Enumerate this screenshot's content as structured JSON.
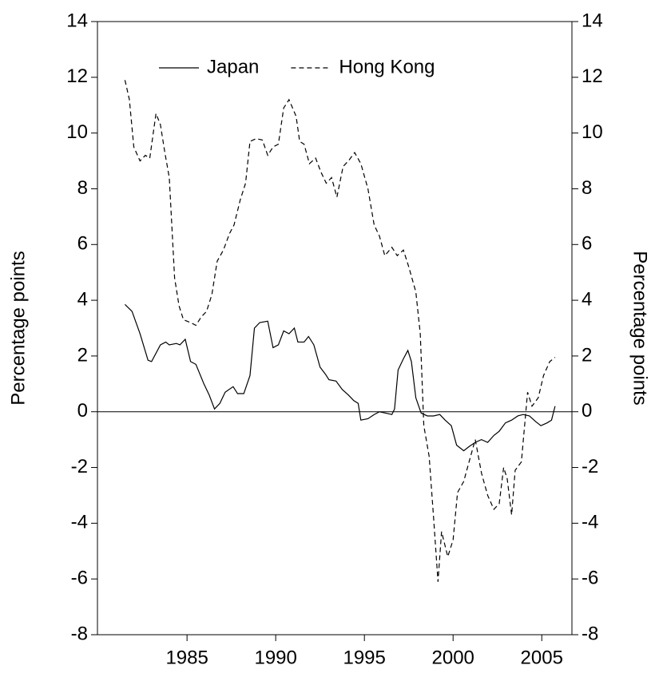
{
  "chart_data": {
    "type": "line",
    "ylabel": "Percentage points",
    "y2label": "Percentage points",
    "legend": "upper center",
    "zero_line": true,
    "xlim": [
      1979.95,
      2006.7
    ],
    "xticks": [
      1985,
      1990,
      1995,
      2000,
      2005
    ],
    "ylim": [
      -8,
      14
    ],
    "yticks": [
      -8,
      -6,
      -4,
      -2,
      0,
      2,
      4,
      6,
      8,
      10,
      12,
      14
    ],
    "y2lim": [
      -8,
      14
    ],
    "y2ticks": [
      -8,
      -6,
      -4,
      -2,
      0,
      2,
      4,
      6,
      8,
      10,
      12,
      14
    ],
    "series": [
      {
        "name": "Japan",
        "color": "#000000",
        "line_style": "solid",
        "x": [
          1981.5,
          1981.9,
          1982.35,
          1982.8,
          1983.0,
          1983.5,
          1983.8,
          1984.0,
          1984.4,
          1984.6,
          1984.9,
          1985.2,
          1985.5,
          1985.95,
          1986.25,
          1986.55,
          1986.85,
          1987.15,
          1987.6,
          1987.85,
          1988.2,
          1988.55,
          1988.8,
          1989.1,
          1989.55,
          1989.85,
          1990.15,
          1990.45,
          1990.75,
          1991.05,
          1991.25,
          1991.6,
          1991.85,
          1992.15,
          1992.5,
          1992.8,
          1993.0,
          1993.4,
          1993.75,
          1994.1,
          1994.4,
          1994.65,
          1994.8,
          1995.2,
          1995.55,
          1995.85,
          1996.2,
          1996.55,
          1996.7,
          1996.9,
          1997.2,
          1997.45,
          1997.65,
          1997.9,
          1998.2,
          1998.55,
          1998.9,
          1999.25,
          1999.55,
          1999.9,
          2000.2,
          2000.6,
          2000.9,
          2001.25,
          2001.6,
          2001.95,
          2002.3,
          2002.6,
          2002.95,
          2003.3,
          2003.65,
          2003.95,
          2004.3,
          2004.65,
          2004.95,
          2005.3,
          2005.55,
          2005.75
        ],
        "values": [
          3.85,
          3.6,
          2.8,
          1.85,
          1.8,
          2.4,
          2.5,
          2.4,
          2.45,
          2.4,
          2.6,
          1.8,
          1.7,
          1.0,
          0.6,
          0.1,
          0.3,
          0.7,
          0.9,
          0.65,
          0.65,
          1.3,
          3.0,
          3.2,
          3.25,
          2.3,
          2.4,
          2.9,
          2.8,
          3.0,
          2.5,
          2.5,
          2.7,
          2.4,
          1.6,
          1.35,
          1.15,
          1.1,
          0.8,
          0.6,
          0.4,
          0.3,
          -0.3,
          -0.25,
          -0.1,
          0.0,
          -0.05,
          -0.1,
          0.1,
          1.5,
          1.9,
          2.2,
          1.8,
          0.5,
          -0.05,
          -0.15,
          -0.15,
          -0.1,
          -0.3,
          -0.5,
          -1.2,
          -1.4,
          -1.25,
          -1.1,
          -1.0,
          -1.1,
          -0.85,
          -0.7,
          -0.4,
          -0.3,
          -0.15,
          -0.1,
          -0.15,
          -0.35,
          -0.5,
          -0.4,
          -0.3,
          0.2
        ]
      },
      {
        "name": "Hong Kong",
        "color": "#000000",
        "line_style": "dashed",
        "x": [
          1981.5,
          1981.75,
          1982.0,
          1982.35,
          1982.65,
          1982.9,
          1983.25,
          1983.5,
          1983.75,
          1984.0,
          1984.3,
          1984.55,
          1984.8,
          1985.2,
          1985.5,
          1985.8,
          1986.1,
          1986.4,
          1986.7,
          1987.05,
          1987.4,
          1987.65,
          1988.0,
          1988.3,
          1988.55,
          1988.9,
          1989.25,
          1989.55,
          1989.85,
          1990.15,
          1990.45,
          1990.75,
          1991.15,
          1991.35,
          1991.6,
          1991.9,
          1992.25,
          1992.55,
          1992.85,
          1993.15,
          1993.45,
          1993.8,
          1994.1,
          1994.45,
          1994.8,
          1995.2,
          1995.55,
          1995.85,
          1996.15,
          1996.55,
          1996.85,
          1997.2,
          1997.5,
          1997.9,
          1998.15,
          1998.35,
          1998.65,
          1998.9,
          1999.15,
          1999.35,
          1999.7,
          2000.0,
          2000.25,
          2000.6,
          2000.9,
          2001.25,
          2001.6,
          2001.95,
          2002.3,
          2002.6,
          2002.85,
          2003.05,
          2003.3,
          2003.5,
          2003.85,
          2004.2,
          2004.45,
          2004.8,
          2005.1,
          2005.45,
          2005.75
        ],
        "values": [
          11.9,
          11.2,
          9.5,
          9.0,
          9.2,
          9.1,
          10.7,
          10.3,
          9.3,
          8.4,
          4.8,
          3.8,
          3.3,
          3.2,
          3.1,
          3.4,
          3.6,
          4.2,
          5.4,
          5.8,
          6.4,
          6.7,
          7.6,
          8.2,
          9.7,
          9.8,
          9.75,
          9.2,
          9.5,
          9.6,
          10.9,
          11.2,
          10.6,
          9.7,
          9.6,
          8.9,
          9.1,
          8.6,
          8.2,
          8.4,
          7.7,
          8.8,
          9.0,
          9.3,
          8.9,
          8.0,
          6.7,
          6.3,
          5.6,
          5.9,
          5.6,
          5.8,
          5.2,
          4.3,
          2.8,
          -0.5,
          -1.6,
          -3.8,
          -6.1,
          -4.3,
          -5.2,
          -4.6,
          -2.9,
          -2.5,
          -1.8,
          -1.0,
          -2.2,
          -3.0,
          -3.5,
          -3.3,
          -2.0,
          -2.4,
          -3.7,
          -2.1,
          -1.8,
          0.7,
          0.2,
          0.5,
          1.3,
          1.8,
          1.95
        ]
      }
    ]
  }
}
